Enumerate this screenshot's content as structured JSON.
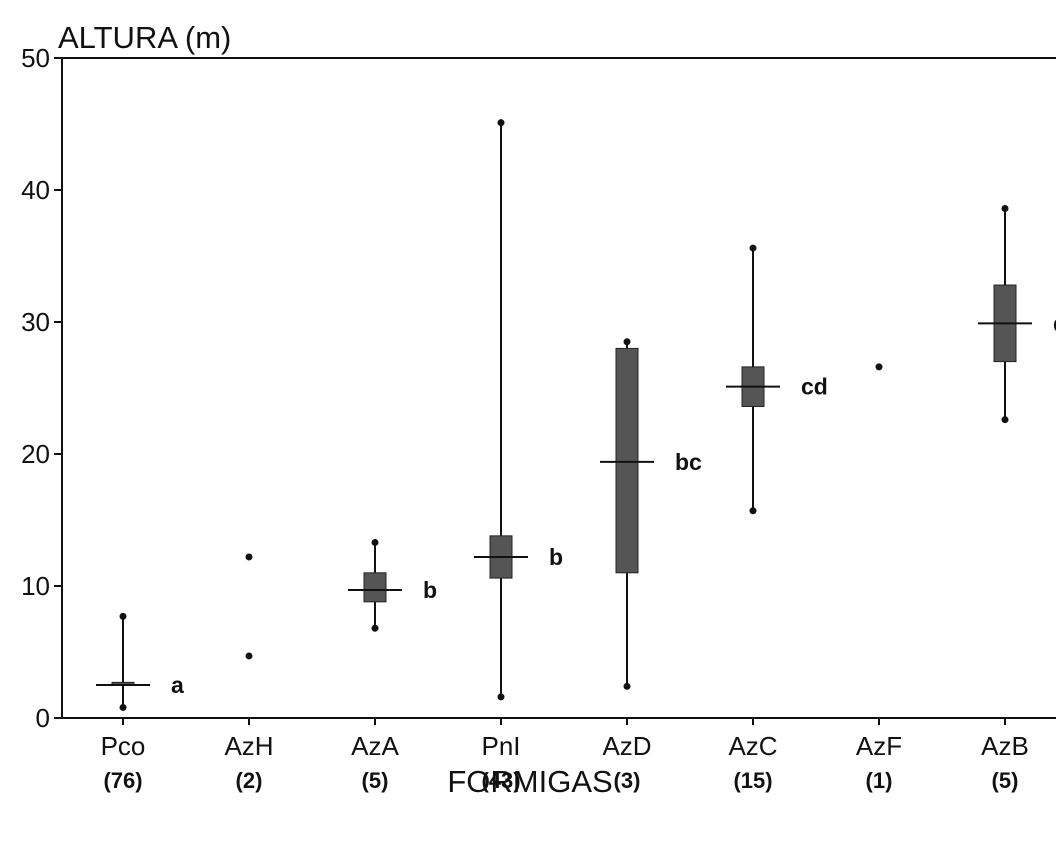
{
  "chart_data": {
    "type": "boxplot",
    "title": "",
    "ylabel": "ALTURA (m)",
    "xlabel": "FORMIGAS",
    "ylim": [
      0,
      50
    ],
    "yticks": [
      0,
      10,
      20,
      30,
      40,
      50
    ],
    "grid": false,
    "categories": [
      "Pco",
      "AzH",
      "AzA",
      "PnI",
      "AzD",
      "AzC",
      "AzF",
      "AzB"
    ],
    "counts": [
      "(76)",
      "(2)",
      "(5)",
      "(43)",
      "(3)",
      "(15)",
      "(1)",
      "(5)"
    ],
    "groups": [
      "a",
      "",
      "b",
      "b",
      "bc",
      "cd",
      "",
      "d"
    ],
    "boxes": [
      {
        "category": "Pco",
        "min": 0.8,
        "q1": 2.5,
        "median": 2.5,
        "q3": 2.7,
        "max": 7.7
      },
      {
        "category": "AzH",
        "points": [
          12.2,
          4.7
        ]
      },
      {
        "category": "AzA",
        "min": 6.8,
        "q1": 8.8,
        "median": 9.7,
        "q3": 11.0,
        "max": 13.3
      },
      {
        "category": "PnI",
        "min": 1.6,
        "q1": 10.6,
        "median": 12.2,
        "q3": 13.8,
        "max": 45.1
      },
      {
        "category": "AzD",
        "min": 2.4,
        "q1": 11.0,
        "median": 19.4,
        "q3": 28.0,
        "max": 28.5
      },
      {
        "category": "AzC",
        "min": 15.7,
        "q1": 23.6,
        "median": 25.1,
        "q3": 26.6,
        "max": 35.6
      },
      {
        "category": "AzF",
        "points": [
          26.6
        ]
      },
      {
        "category": "AzB",
        "min": 22.6,
        "q1": 27.0,
        "median": 29.9,
        "q3": 32.8,
        "max": 38.6
      }
    ]
  }
}
